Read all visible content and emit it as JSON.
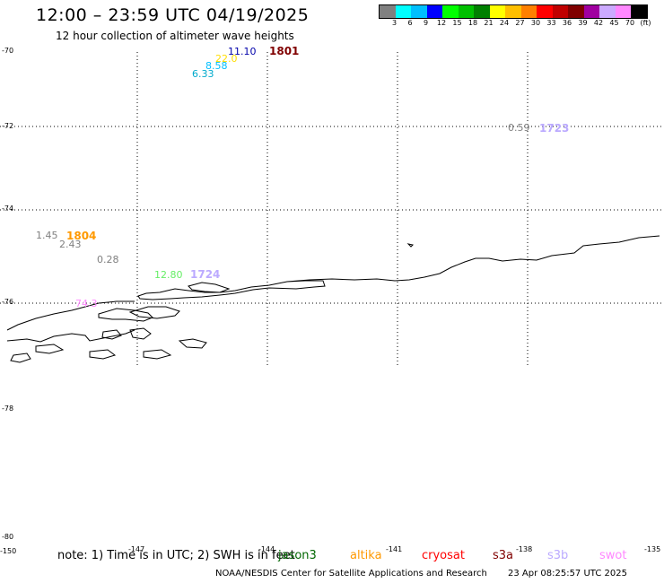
{
  "header": {
    "title": "12:00 – 23:59 UTC 04/19/2025",
    "subtitle": "12 hour collection of altimeter wave heights"
  },
  "legend": {
    "colors": [
      "#808080",
      "#00ffff",
      "#00bfff",
      "#0000ff",
      "#00ff00",
      "#00c000",
      "#008000",
      "#ffff00",
      "#ffbf00",
      "#ff8000",
      "#ff0000",
      "#c00000",
      "#800000",
      "#a000a0",
      "#ccaaff",
      "#ff88ff",
      "#000000"
    ],
    "labels": [
      "3",
      "6",
      "9",
      "12",
      "15",
      "18",
      "21",
      "24",
      "27",
      "30",
      "33",
      "36",
      "39",
      "42",
      "45",
      "70",
      "(ft)"
    ]
  },
  "lat_labels": [
    "-70",
    "-72",
    "-74",
    "-76",
    "-78",
    "-80"
  ],
  "lon_labels": [
    "-150",
    "-147",
    "-144",
    "-141",
    "-138",
    "-135"
  ],
  "observations": [
    {
      "text": "11.10",
      "color": "#0000aa"
    },
    {
      "text": "22.0",
      "color": "#ffdd00"
    },
    {
      "text": "8.58",
      "color": "#00bfff"
    },
    {
      "text": "6.33",
      "color": "#00aacc"
    },
    {
      "text": "0.59",
      "color": "#808080"
    },
    {
      "text": "1.45",
      "color": "#808080"
    },
    {
      "text": "2.43",
      "color": "#808080"
    },
    {
      "text": "0.28",
      "color": "#808080"
    },
    {
      "text": "12.80",
      "color": "#66ee66"
    },
    {
      "text": "74.3",
      "color": "#ff88ff"
    }
  ],
  "pass_times": [
    {
      "text": "1801",
      "color": "#800000"
    },
    {
      "text": "1723",
      "color": "#bbaaff"
    },
    {
      "text": "1804",
      "color": "#ff9900"
    },
    {
      "text": "1724",
      "color": "#bbaaff"
    }
  ],
  "footer": {
    "note": "note: 1) Time is in UTC; 2) SWH is in feet",
    "missions": [
      {
        "name": "jason3",
        "color": "#006600"
      },
      {
        "name": "altika",
        "color": "#ff9900"
      },
      {
        "name": "cryosat",
        "color": "#ff0000"
      },
      {
        "name": "s3a",
        "color": "#800000"
      },
      {
        "name": "s3b",
        "color": "#bbaaff"
      },
      {
        "name": "swot",
        "color": "#ff88ff"
      }
    ],
    "credit": "NOAA/NESDIS Center for Satellite Applications and Research",
    "timestamp": "23 Apr 08:25:57 UTC 2025"
  }
}
